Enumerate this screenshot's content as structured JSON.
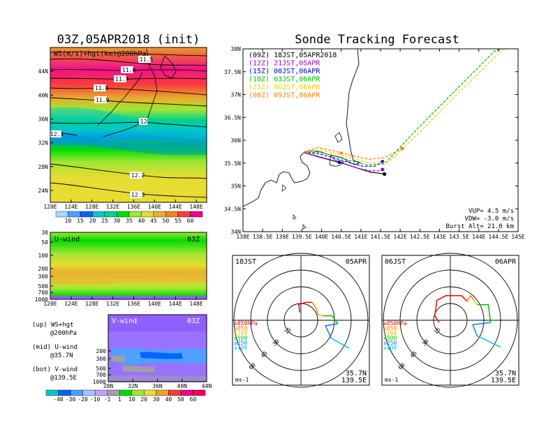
{
  "left_title": "03Z,05APR2018 (init)",
  "right_title": "Sonde Tracking Forecast",
  "chart_data": [
    {
      "type": "heatmap",
      "name": "ws_hgt_200hPa",
      "title": "WS(m/s)+hgt(km)@200hPa",
      "x_ticks": [
        "120E",
        "124E",
        "128E",
        "132E",
        "136E",
        "140E",
        "144E",
        "148E"
      ],
      "y_ticks": [
        "24N",
        "28N",
        "32N",
        "36N",
        "40N",
        "44N"
      ],
      "xlim": [
        120,
        150
      ],
      "ylim": [
        22,
        48
      ],
      "colorbar_values": [
        10,
        15,
        20,
        25,
        30,
        35,
        40,
        45,
        50,
        55,
        60
      ],
      "colorbar_labels": [
        "10",
        "15",
        "20",
        "25",
        "30",
        "35",
        "40",
        "45",
        "50",
        "55",
        "60"
      ],
      "colorbar_colors": [
        "#a0dcff",
        "#50a0ff",
        "#0064ff",
        "#00c8c8",
        "#00d28c",
        "#00dc00",
        "#a0e632",
        "#e6dc32",
        "#e6af2d",
        "#f08228",
        "#fa3c3c",
        "#f0008c"
      ],
      "contours": [
        {
          "label": "11.5",
          "value": 11.5
        },
        {
          "label": "11.6",
          "value": 11.6
        },
        {
          "label": "11.7",
          "value": 11.7
        },
        {
          "label": "11.8",
          "value": 11.8
        },
        {
          "label": "11.9",
          "value": 11.9
        },
        {
          "label": "12",
          "value": 12.0
        },
        {
          "label": "12.1",
          "value": 12.1
        },
        {
          "label": "12.2",
          "value": 12.2
        },
        {
          "label": "12.3",
          "value": 12.3
        }
      ]
    },
    {
      "type": "heatmap",
      "name": "u_wind",
      "label": "U-wind",
      "time": "03Z",
      "x_ticks": [
        "120E",
        "124E",
        "128E",
        "132E",
        "136E",
        "140E",
        "144E",
        "148E"
      ],
      "y_ticks": [
        "30",
        "50",
        "100",
        "200",
        "300",
        "500",
        "700",
        "1000"
      ]
    },
    {
      "type": "heatmap",
      "name": "v_wind",
      "label": "V-wind",
      "time": "03Z",
      "x_ticks": [
        "28N",
        "32N",
        "36N",
        "40N",
        "44N"
      ],
      "y_ticks": [
        "200",
        "300",
        "500",
        "700",
        "1000"
      ],
      "colorbar_labels": [
        "-40",
        "-30",
        "-20",
        "-10",
        "-1",
        "1",
        "10",
        "20",
        "30",
        "40",
        "50",
        "60"
      ],
      "colorbar_colors": [
        "#00c8c8",
        "#0064ff",
        "#50a0ff",
        "#a0c8ff",
        "#c8a0ff",
        "#a0a0a0",
        "#00dc00",
        "#a0e632",
        "#e6dc32",
        "#f0a028",
        "#fa3c3c",
        "#f0008c"
      ]
    },
    {
      "type": "line",
      "name": "track_map",
      "x_ticks": [
        "138E",
        "138.5E",
        "139E",
        "139.5E",
        "140E",
        "140.5E",
        "141E",
        "141.5E",
        "142E",
        "142.5E",
        "143E",
        "143.5E",
        "144E",
        "144.5E",
        "145E"
      ],
      "y_ticks": [
        "34N",
        "34.5N",
        "35N",
        "35.5N",
        "36N",
        "36.5N",
        "37N",
        "37.5N",
        "38N"
      ],
      "xlim": [
        138,
        145
      ],
      "ylim": [
        34,
        38
      ],
      "series": [
        {
          "name": "(09Z)  18JST,05APR2018",
          "color": "#000000",
          "points": [
            [
              139.55,
              35.73
            ],
            [
              139.9,
              35.64
            ],
            [
              140.25,
              35.56
            ],
            [
              140.6,
              35.48
            ],
            [
              140.95,
              35.38
            ],
            [
              141.25,
              35.3
            ],
            [
              141.45,
              35.28
            ],
            [
              141.6,
              35.26
            ]
          ]
        },
        {
          "name": "(12Z)  21JST,05APR",
          "color": "#a000c8",
          "points": [
            [
              139.55,
              35.73
            ],
            [
              139.9,
              35.65
            ],
            [
              140.25,
              35.57
            ],
            [
              140.6,
              35.48
            ],
            [
              140.95,
              35.38
            ],
            [
              141.25,
              35.33
            ],
            [
              141.45,
              35.33
            ],
            [
              141.55,
              35.36
            ]
          ]
        },
        {
          "name": "(15Z)  00JST,06APR",
          "color": "#0000ff",
          "points": [
            [
              139.55,
              35.74
            ],
            [
              139.95,
              35.7
            ],
            [
              140.3,
              35.62
            ],
            [
              140.7,
              35.51
            ],
            [
              141.05,
              35.43
            ],
            [
              141.35,
              35.43
            ],
            [
              141.55,
              35.53
            ]
          ]
        },
        {
          "name": "(18Z)  03JST,06APR",
          "color": "#00c000",
          "points": [
            [
              139.55,
              35.74
            ],
            [
              139.95,
              35.74
            ],
            [
              140.3,
              35.66
            ],
            [
              140.75,
              35.55
            ],
            [
              141.15,
              35.46
            ],
            [
              141.6,
              35.48
            ],
            [
              142.3,
              36.13
            ],
            [
              143.3,
              37.0
            ],
            [
              144.4,
              37.95
            ],
            [
              144.6,
              38.0
            ]
          ]
        },
        {
          "name": "(21Z)  06JST,06APR",
          "color": "#f0d000",
          "points": [
            [
              139.55,
              35.74
            ],
            [
              139.95,
              35.78
            ],
            [
              140.35,
              35.72
            ],
            [
              140.8,
              35.6
            ],
            [
              141.25,
              35.5
            ],
            [
              141.7,
              35.52
            ],
            [
              142.5,
              36.18
            ],
            [
              143.5,
              37.05
            ],
            [
              144.6,
              37.98
            ],
            [
              144.7,
              38.0
            ]
          ]
        },
        {
          "name": "(00Z)  09JST,06APR",
          "color": "#ff8000",
          "points": [
            [
              139.55,
              35.75
            ],
            [
              139.9,
              35.84
            ],
            [
              140.3,
              35.77
            ],
            [
              140.75,
              35.67
            ],
            [
              141.2,
              35.58
            ],
            [
              141.6,
              35.62
            ],
            [
              142.05,
              35.82
            ]
          ]
        }
      ],
      "info": {
        "vup": "VUP=  4.5 m/s",
        "vdw": "VDW= -3.0 m/s",
        "burst": "Burst Alt= 21.0 km"
      }
    },
    {
      "type": "scatter",
      "name": "hodograph_18JST",
      "label_left": "18JST",
      "label_right": "05APR",
      "ring_labels": [
        "15",
        "30",
        "45",
        "60"
      ],
      "units": "ms-1",
      "location": [
        "35.7N",
        "139.5E"
      ],
      "levels": [
        {
          "name": "≥850hPa",
          "color": "#ff0000"
        },
        {
          "name": "≤850",
          "color": "#ff8000"
        },
        {
          "name": "≤700",
          "color": "#e0c000"
        },
        {
          "name": "≤500",
          "color": "#00c000"
        },
        {
          "name": "≤250",
          "color": "#0080ff"
        },
        {
          "name": "≤100",
          "color": "#00c0e0"
        }
      ],
      "segments": [
        {
          "color": "#ff0000",
          "points": [
            [
              -1,
              7
            ],
            [
              -2,
              14
            ],
            [
              4,
              16
            ],
            [
              10,
              16
            ]
          ]
        },
        {
          "color": "#ff8000",
          "points": [
            [
              10,
              16
            ],
            [
              14,
              10
            ],
            [
              15,
              5
            ]
          ]
        },
        {
          "color": "#e0c000",
          "points": [
            [
              15,
              5
            ],
            [
              20,
              4
            ]
          ]
        },
        {
          "color": "#00c000",
          "points": [
            [
              20,
              4
            ],
            [
              28,
              4
            ],
            [
              33,
              -3
            ]
          ]
        },
        {
          "color": "#0080ff",
          "points": [
            [
              33,
              -3
            ],
            [
              22,
              -5
            ],
            [
              27,
              -16
            ]
          ]
        },
        {
          "color": "#00c0e0",
          "points": [
            [
              27,
              -16
            ],
            [
              43,
              -25
            ]
          ]
        }
      ]
    },
    {
      "type": "scatter",
      "name": "hodograph_06JST",
      "label_left": "06JST",
      "label_right": "06APR",
      "ring_labels": [
        "15",
        "30",
        "45",
        "60"
      ],
      "units": "ms-1",
      "location": [
        "35.7N",
        "139.5E"
      ],
      "levels": [
        {
          "name": "≥850hPa",
          "color": "#ff0000"
        },
        {
          "name": "≤850",
          "color": "#ff8000"
        },
        {
          "name": "≤700",
          "color": "#e0c000"
        },
        {
          "name": "≤500",
          "color": "#00c000"
        },
        {
          "name": "≤250",
          "color": "#0080ff"
        },
        {
          "name": "≤100",
          "color": "#00c0e0"
        }
      ],
      "segments": [
        {
          "color": "#ff0000",
          "points": [
            [
              -10,
              -2
            ],
            [
              -14,
              4
            ],
            [
              -12,
              18
            ],
            [
              -4,
              22
            ],
            [
              10,
              22
            ],
            [
              15,
              17
            ]
          ]
        },
        {
          "color": "#ff8000",
          "points": [
            [
              15,
              17
            ],
            [
              18,
              22
            ],
            [
              21,
              18
            ]
          ]
        },
        {
          "color": "#e0c000",
          "points": [
            [
              21,
              18
            ],
            [
              24,
              14
            ]
          ]
        },
        {
          "color": "#00c000",
          "points": [
            [
              24,
              14
            ],
            [
              34,
              14
            ],
            [
              36,
              -2
            ]
          ]
        },
        {
          "color": "#0080ff",
          "points": [
            [
              36,
              -2
            ],
            [
              20,
              -4
            ],
            [
              24,
              -14
            ]
          ]
        },
        {
          "color": "#00c0e0",
          "points": [
            [
              24,
              -14
            ],
            [
              45,
              -24
            ]
          ]
        }
      ]
    }
  ],
  "legend_text": {
    "up1": "(up) WS+hgt",
    "up2": "@200hPa",
    "mid1": "(mid) U-wind",
    "mid2": "@35.7N",
    "bot1": "(bot) V-wind",
    "bot2": "@139.5E"
  }
}
